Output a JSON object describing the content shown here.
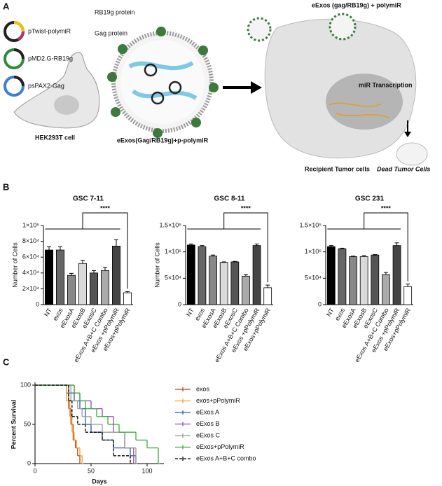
{
  "panel_labels": [
    "A",
    "B",
    "C"
  ],
  "diagram": {
    "plasmid_1": "pTwist-polymiR",
    "plasmid_2": "pMD2.G-RB19g",
    "plasmid_3": "psPAX2-Gag",
    "producer_cell": "HEK293T cell",
    "protein_1": "RB19g protein",
    "protein_2": "Gag protein",
    "exosome": "eExos(Gag/RB19g)+p-polymiR",
    "uptake": "eExos (gag/RB19g) + polymiR",
    "transcription": "miR Transcription",
    "recipient": "Recipient Tumor cells",
    "dead": "Dead Tumor Cells"
  },
  "chart_data": [
    {
      "type": "bar",
      "title": "GSC 7-11",
      "y_label": "Number of Cells",
      "categories": [
        "NT",
        "exos",
        "eExosA",
        "eExosB",
        "eExosC",
        "eExos A+B+C Combo",
        "eExos +pPolymiR",
        "eExos+pPolymiR"
      ],
      "values": [
        69000,
        69000,
        37000,
        52000,
        40000,
        43000,
        74000,
        15000
      ],
      "errors": [
        4000,
        4000,
        2500,
        4000,
        3000,
        4000,
        8000,
        1500
      ],
      "colors": [
        "#000000",
        "#666666",
        "#888888",
        "#d9d9d9",
        "#555555",
        "#aaaaaa",
        "#444444",
        "#ffffff"
      ],
      "ylim": [
        0,
        100000
      ],
      "yticks": [
        0,
        {
          "value": 20000,
          "label": "2×10⁴"
        },
        {
          "value": 40000,
          "label": "4×10⁴"
        },
        {
          "value": 60000,
          "label": "6×10⁴"
        },
        {
          "value": 80000,
          "label": "8×10⁴"
        },
        {
          "value": 100000,
          "label": "1×10⁵"
        }
      ],
      "annotation": "****"
    },
    {
      "type": "bar",
      "title": "GSC 8-11",
      "y_label": "Number of Cells",
      "categories": [
        "NT",
        "exos",
        "eExosA",
        "eExosB",
        "eExosC",
        "eExos A+B+C Combo",
        "eExos +pPolymiR",
        "eExos+pPolymiR"
      ],
      "values": [
        113000,
        110000,
        92000,
        80000,
        81000,
        54000,
        112000,
        32000
      ],
      "errors": [
        2000,
        2000,
        2000,
        1000,
        1000,
        3000,
        3000,
        5000
      ],
      "colors": [
        "#000000",
        "#666666",
        "#888888",
        "#d9d9d9",
        "#555555",
        "#aaaaaa",
        "#444444",
        "#ffffff"
      ],
      "ylim": [
        0,
        150000
      ],
      "yticks": [
        0,
        {
          "value": 50000,
          "label": "5×10⁴"
        },
        {
          "value": 100000,
          "label": "1×10⁵"
        },
        {
          "value": 150000,
          "label": "1.5×10⁵"
        }
      ],
      "annotation": "****"
    },
    {
      "type": "bar",
      "title": "GSC 231",
      "categories": [
        "NT",
        "exos",
        "eExosA",
        "eExosB",
        "eExosC",
        "eExos A+B+C Combo",
        "eExos +pPolymiR",
        "eExos+pPolymiR"
      ],
      "values": [
        110000,
        106000,
        91000,
        91000,
        94000,
        57000,
        112000,
        34000
      ],
      "errors": [
        2000,
        1000,
        1000,
        2000,
        1000,
        4000,
        5000,
        5000
      ],
      "colors": [
        "#000000",
        "#666666",
        "#888888",
        "#d9d9d9",
        "#555555",
        "#aaaaaa",
        "#444444",
        "#ffffff"
      ],
      "ylim": [
        0,
        150000
      ],
      "yticks": [
        0,
        {
          "value": 50000,
          "label": "5×10⁴"
        },
        {
          "value": 100000,
          "label": "1×10⁵"
        },
        {
          "value": 150000,
          "label": "1.5×10⁵"
        }
      ],
      "annotation": "****"
    },
    {
      "type": "step",
      "x_label": "Days",
      "y_label": "Percent Survival",
      "xlim": [
        0,
        115
      ],
      "xticks": [
        0,
        50,
        100
      ],
      "ylim": [
        0,
        100
      ],
      "yticks": [
        0,
        50,
        100
      ],
      "series": [
        {
          "name": "exos",
          "color": "#b5451b",
          "dashed": false,
          "x": [
            0,
            28,
            30,
            32,
            34,
            36,
            38,
            40
          ],
          "values": [
            100,
            90,
            70,
            50,
            30,
            20,
            10,
            0
          ]
        },
        {
          "name": "exos+pPolymiR",
          "color": "#f0a030",
          "dashed": false,
          "x": [
            0,
            28,
            31,
            33,
            35,
            37,
            40,
            42
          ],
          "values": [
            100,
            80,
            60,
            40,
            30,
            20,
            10,
            0
          ]
        },
        {
          "name": "eExos A",
          "color": "#2f5aa8",
          "dashed": false,
          "x": [
            0,
            30,
            35,
            40,
            45,
            50,
            60,
            70,
            85,
            90
          ],
          "values": [
            100,
            90,
            80,
            70,
            50,
            40,
            30,
            20,
            10,
            0
          ]
        },
        {
          "name": "eExos B",
          "color": "#8a4fb0",
          "dashed": false,
          "x": [
            0,
            35,
            40,
            50,
            60,
            70,
            80,
            88
          ],
          "values": [
            100,
            90,
            80,
            70,
            60,
            40,
            20,
            0
          ]
        },
        {
          "name": "eExos C",
          "color": "#999999",
          "dashed": false,
          "x": [
            0,
            32,
            38,
            42,
            50,
            60,
            80,
            90
          ],
          "values": [
            100,
            80,
            70,
            60,
            50,
            40,
            20,
            0
          ]
        },
        {
          "name": "eExos+pPolymiR",
          "color": "#3bab3b",
          "dashed": false,
          "x": [
            0,
            35,
            40,
            45,
            55,
            65,
            75,
            90,
            100,
            110
          ],
          "values": [
            100,
            90,
            80,
            70,
            60,
            50,
            40,
            30,
            20,
            0
          ]
        },
        {
          "name": "eExos A+B+C combo",
          "color": "#000000",
          "dashed": true,
          "x": [
            0,
            30,
            33,
            38,
            45,
            60,
            70,
            85
          ],
          "values": [
            100,
            80,
            60,
            50,
            40,
            30,
            10,
            0
          ]
        }
      ]
    }
  ]
}
